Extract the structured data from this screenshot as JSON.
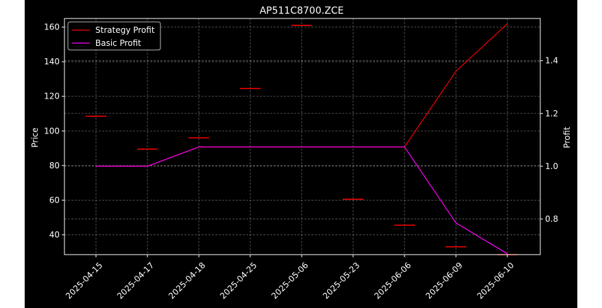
{
  "chart_data": {
    "type": "line",
    "title": "AP511C8700.ZCE",
    "ylabel_left": "Price",
    "ylabel_right": "Profit",
    "categories": [
      "2025-04-15",
      "2025-04-17",
      "2025-04-18",
      "2025-04-25",
      "2025-05-06",
      "2025-05-23",
      "2025-06-06",
      "2025-06-09",
      "2025-06-10"
    ],
    "ylim_left": [
      28.5,
      165
    ],
    "yticks_left": [
      40,
      60,
      80,
      100,
      120,
      140,
      160
    ],
    "ylim_right": [
      0.665,
      1.56
    ],
    "yticks_right": [
      0.8,
      1.0,
      1.2,
      1.4
    ],
    "grid": true,
    "legend_position": "upper-left",
    "price_markers": {
      "name": "Price",
      "color": "#ff0000",
      "values": [
        108.5,
        89.5,
        96,
        124.5,
        161,
        60.5,
        45.5,
        33,
        28.5
      ]
    },
    "series": [
      {
        "name": "Strategy Profit",
        "color": "#ff0000",
        "axis": "right",
        "values": [
          1.0,
          1.0,
          1.073,
          1.073,
          1.073,
          1.073,
          1.073,
          1.36,
          1.54
        ]
      },
      {
        "name": "Basic Profit",
        "color": "#ff00ff",
        "axis": "right",
        "values": [
          1.0,
          1.0,
          1.073,
          1.073,
          1.073,
          1.073,
          1.073,
          0.785,
          0.668
        ]
      }
    ]
  }
}
